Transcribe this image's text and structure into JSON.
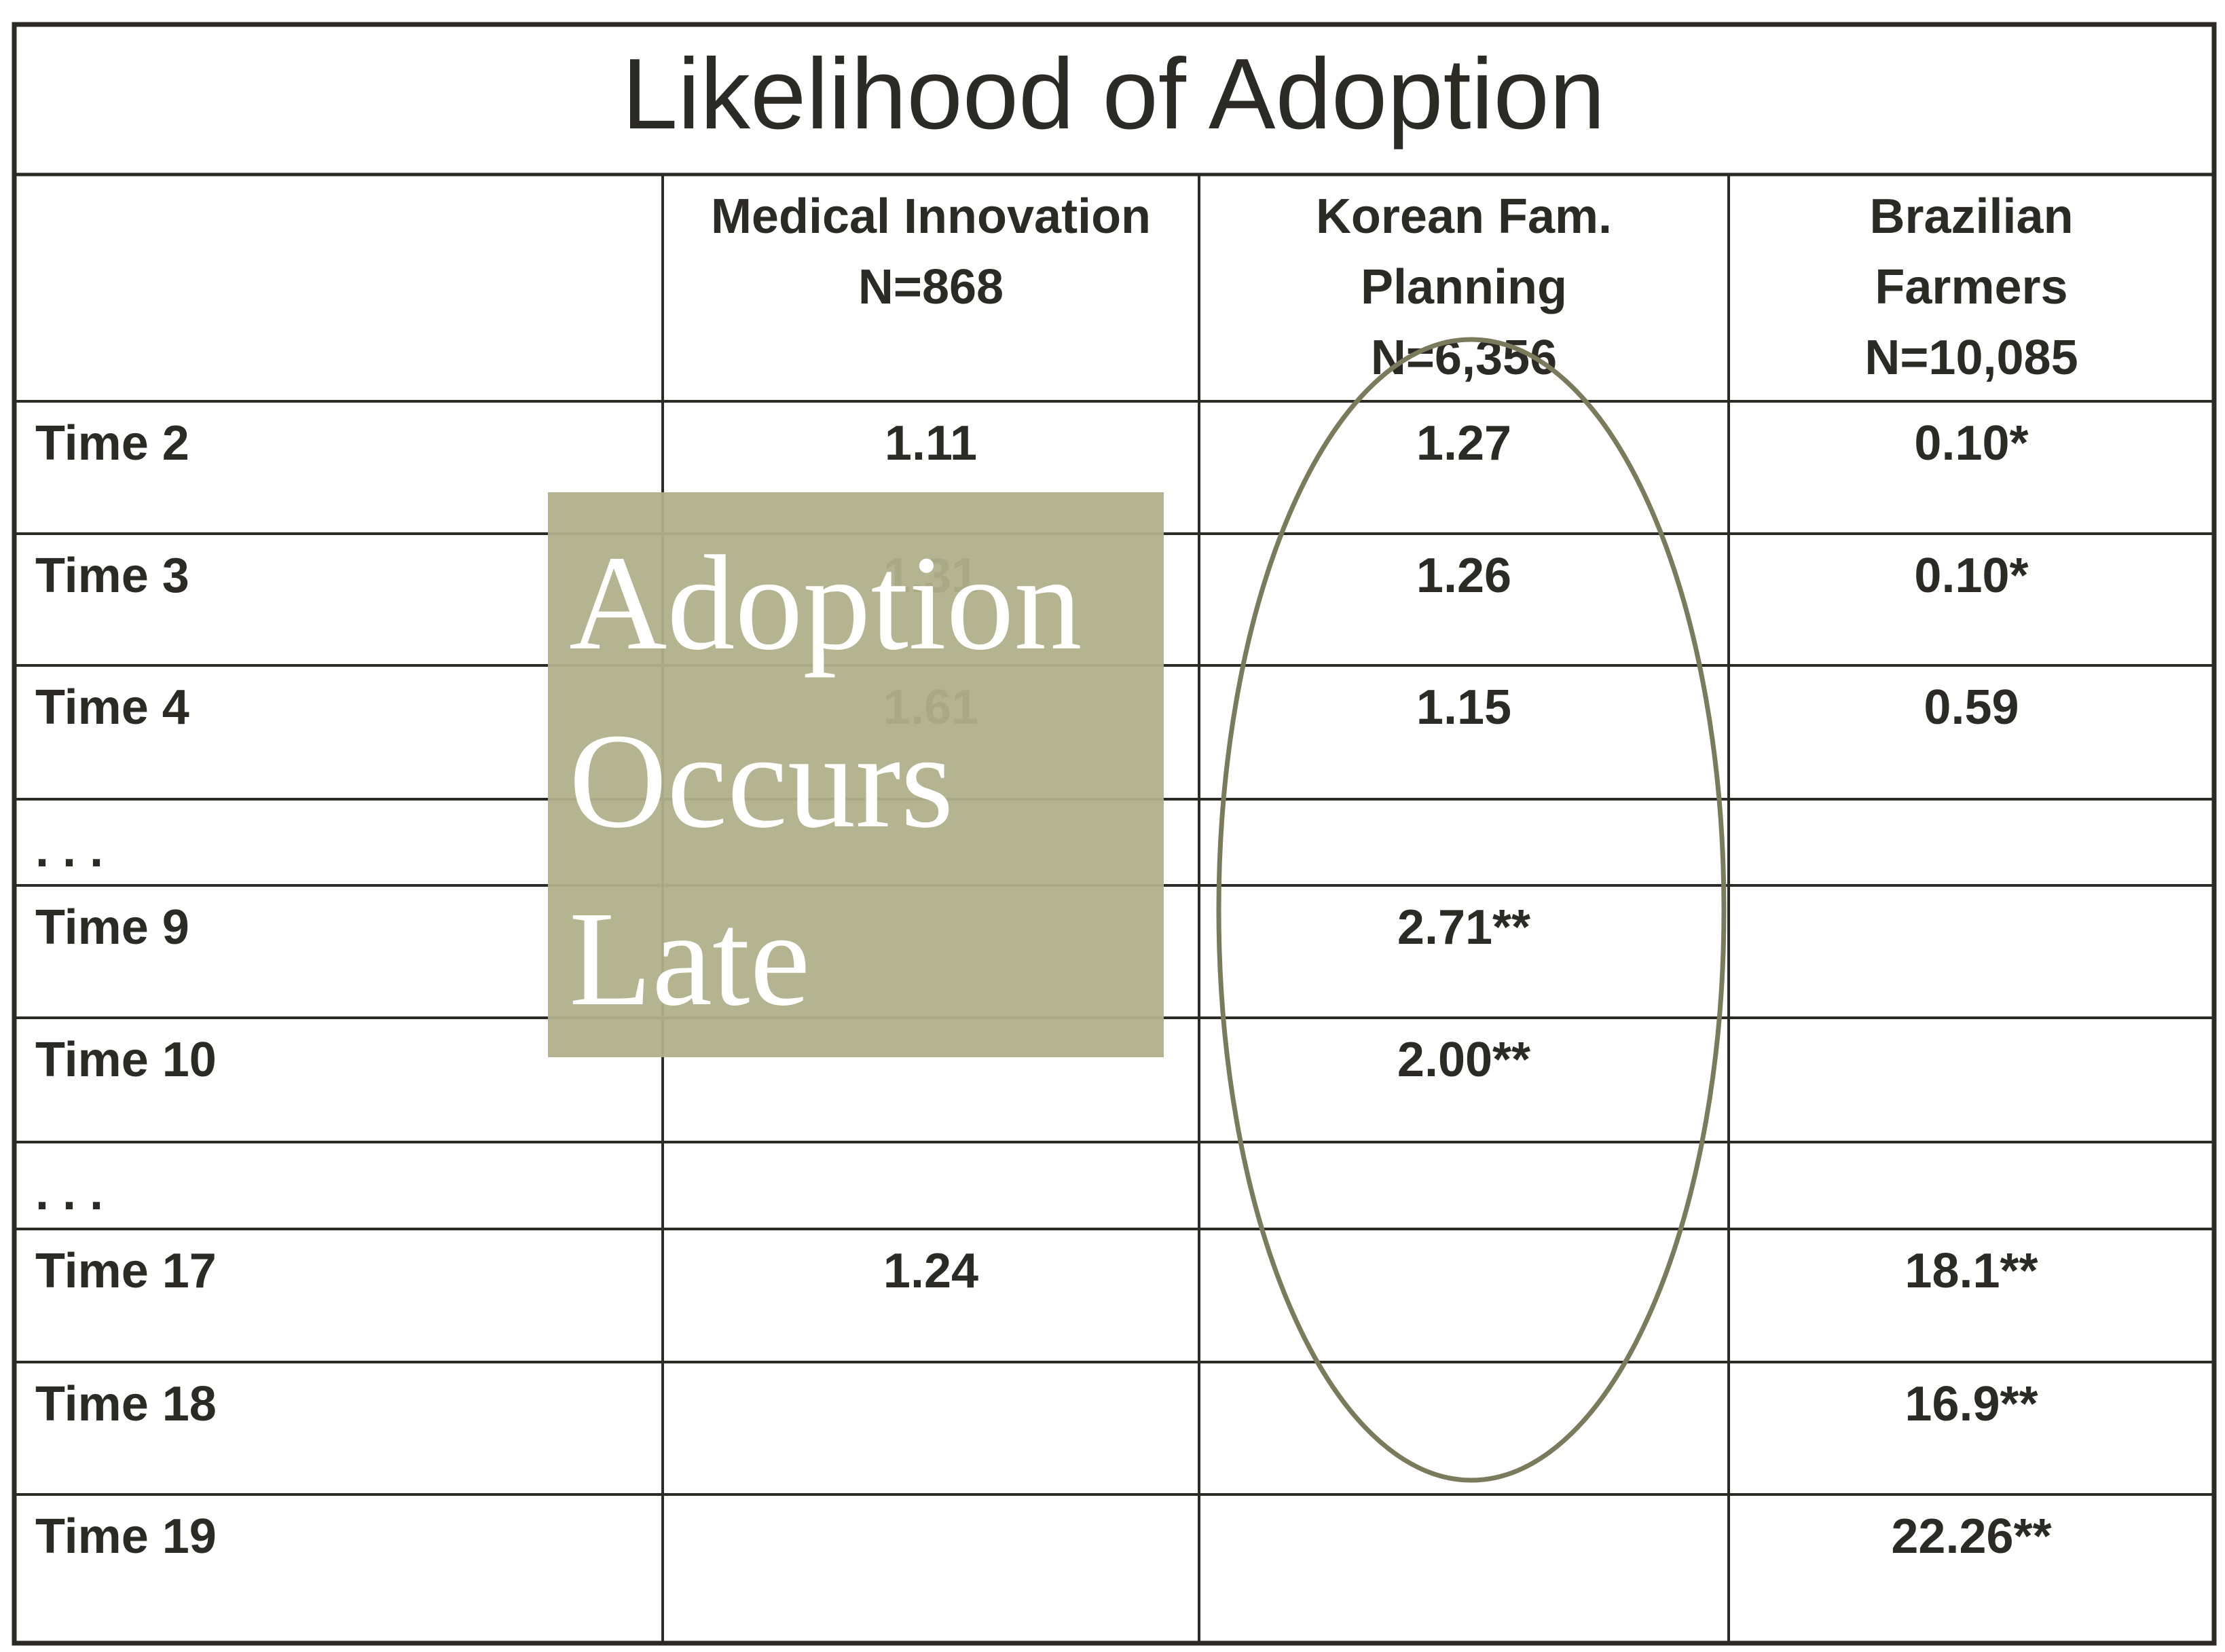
{
  "title": "Likelihood of Adoption",
  "table": {
    "header": [
      {
        "lines": [
          "Medical Innovation",
          "N=868"
        ]
      },
      {
        "lines": [
          "Korean Fam.",
          "Planning",
          "N=6,356"
        ]
      },
      {
        "lines": [
          "Brazilian",
          "Farmers",
          "N=10,085"
        ]
      }
    ],
    "rows": [
      [
        "Time 2",
        "1.11",
        "1.27",
        "0.10*"
      ],
      [
        "Time 3",
        "1.31",
        "1.26",
        "0.10*"
      ],
      [
        "Time 4",
        "1.61",
        "1.15",
        "0.59"
      ],
      [
        ". . .",
        null,
        null,
        null
      ],
      [
        "Time 9",
        null,
        "2.71**",
        null
      ],
      [
        "Time 10",
        null,
        "2.00**",
        null
      ],
      [
        ". . .",
        null,
        null,
        null
      ],
      [
        "Time 17",
        "1.24",
        null,
        "18.1**"
      ],
      [
        "Time 18",
        null,
        null,
        "16.9**"
      ],
      [
        "Time 19",
        null,
        null,
        "22.26**"
      ]
    ]
  },
  "overlay": {
    "lines": [
      "Adoption",
      "Occurs",
      "Late"
    ]
  }
}
